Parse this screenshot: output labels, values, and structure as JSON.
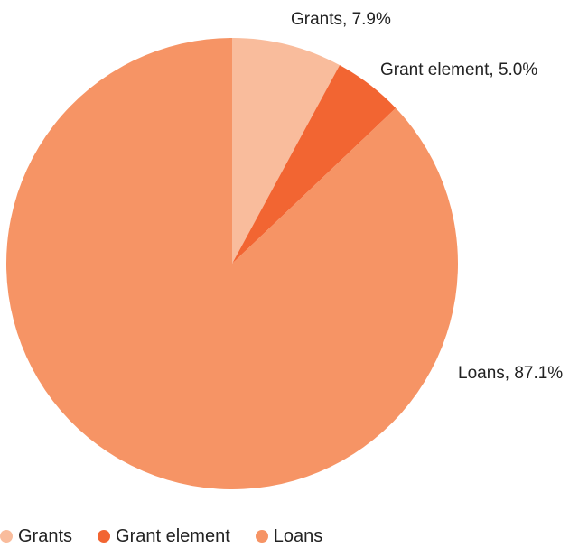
{
  "chart_data": {
    "type": "pie",
    "title": "",
    "start_angle_deg": 0,
    "direction": "clockwise",
    "slices": [
      {
        "name": "Grants",
        "value": 7.9,
        "label": "Grants, 7.9%",
        "color": "#F9BC9C"
      },
      {
        "name": "Grant element",
        "value": 5.0,
        "label": "Grant element, 5.0%",
        "color": "#F26532"
      },
      {
        "name": "Loans",
        "value": 87.1,
        "label": "Loans, 87.1%",
        "color": "#F69465"
      }
    ],
    "legend": {
      "position": "bottom-left",
      "entries": [
        "Grants",
        "Grant element",
        "Loans"
      ]
    }
  }
}
